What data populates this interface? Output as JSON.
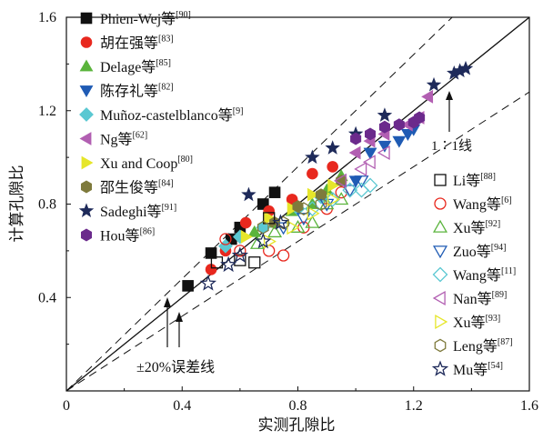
{
  "chart_data": {
    "type": "scatter",
    "xlabel": "实测孔隙比",
    "ylabel": "计算孔隙比",
    "xlim": [
      0,
      1.6
    ],
    "ylim": [
      0,
      1.6
    ],
    "xticks": [
      "0",
      "0.4",
      "0.8",
      "1.2",
      "1.6"
    ],
    "yticks": [
      "0.4",
      "0.8",
      "1.2",
      "1.6"
    ],
    "reference_lines": [
      {
        "label": "1∶1线",
        "slope": 1.0
      },
      {
        "label": "±20%误差线",
        "slopes": [
          1.2,
          0.8
        ]
      }
    ],
    "legend_left": [
      {
        "name": "Phien-Wej等",
        "ref": "[90]",
        "marker": "square",
        "color": "#111111",
        "filled": true
      },
      {
        "name": "胡在强等",
        "ref": "[83]",
        "marker": "circle",
        "color": "#e8281e",
        "filled": true
      },
      {
        "name": "Delage等",
        "ref": "[85]",
        "marker": "triangle-up",
        "color": "#5ab43c",
        "filled": true
      },
      {
        "name": "陈存礼等",
        "ref": "[82]",
        "marker": "triangle-down",
        "color": "#1f5bb4",
        "filled": true
      },
      {
        "name": "Muñoz-castelblanco等",
        "ref": "[9]",
        "marker": "diamond",
        "color": "#5bc8d2",
        "filled": true
      },
      {
        "name": "Ng等",
        "ref": "[62]",
        "marker": "triangle-left",
        "color": "#b25fb2",
        "filled": true
      },
      {
        "name": "Xu and Coop",
        "ref": "[80]",
        "marker": "triangle-right",
        "color": "#e6e62a",
        "filled": true
      },
      {
        "name": "邵生俊等",
        "ref": "[84]",
        "marker": "hexagon",
        "color": "#7e7a3c",
        "filled": true
      },
      {
        "name": "Sadeghi等",
        "ref": "[91]",
        "marker": "star",
        "color": "#1e2a5a",
        "filled": true
      },
      {
        "name": "Hou等",
        "ref": "[86]",
        "marker": "hexagon",
        "color": "#6b2a8c",
        "filled": true
      }
    ],
    "legend_right": [
      {
        "name": "Li等",
        "ref": "[88]",
        "marker": "square",
        "color": "#111111",
        "filled": false
      },
      {
        "name": "Wang等",
        "ref": "[6]",
        "marker": "circle",
        "color": "#e8281e",
        "filled": false
      },
      {
        "name": "Xu等",
        "ref": "[92]",
        "marker": "triangle-up",
        "color": "#5ab43c",
        "filled": false
      },
      {
        "name": "Zuo等",
        "ref": "[94]",
        "marker": "triangle-down",
        "color": "#1f5bb4",
        "filled": false
      },
      {
        "name": "Wang等",
        "ref": "[11]",
        "marker": "diamond",
        "color": "#5bc8d2",
        "filled": false
      },
      {
        "name": "Nan等",
        "ref": "[89]",
        "marker": "triangle-left",
        "color": "#b25fb2",
        "filled": false
      },
      {
        "name": "Xu等",
        "ref": "[93]",
        "marker": "triangle-right",
        "color": "#e6e62a",
        "filled": false
      },
      {
        "name": "Leng等",
        "ref": "[87]",
        "marker": "hexagon",
        "color": "#7e7a3c",
        "filled": false
      },
      {
        "name": "Mu等",
        "ref": "[54]",
        "marker": "star",
        "color": "#1e2a5a",
        "filled": false
      }
    ],
    "series": [
      {
        "legend": "legend_left.0",
        "points": [
          [
            0.42,
            0.45
          ],
          [
            0.5,
            0.59
          ],
          [
            0.57,
            0.65
          ],
          [
            0.6,
            0.7
          ],
          [
            0.68,
            0.8
          ],
          [
            0.72,
            0.85
          ]
        ]
      },
      {
        "legend": "legend_left.1",
        "points": [
          [
            0.5,
            0.52
          ],
          [
            0.55,
            0.6
          ],
          [
            0.62,
            0.72
          ],
          [
            0.7,
            0.77
          ],
          [
            0.78,
            0.82
          ],
          [
            0.85,
            0.93
          ],
          [
            0.92,
            0.96
          ]
        ]
      },
      {
        "legend": "legend_left.2",
        "points": [
          [
            0.65,
            0.68
          ],
          [
            0.72,
            0.72
          ],
          [
            0.78,
            0.77
          ],
          [
            0.85,
            0.8
          ],
          [
            0.9,
            0.86
          ],
          [
            0.95,
            0.92
          ]
        ]
      },
      {
        "legend": "legend_left.3",
        "points": [
          [
            1.0,
            0.9
          ],
          [
            1.05,
            1.02
          ],
          [
            1.1,
            1.05
          ],
          [
            1.15,
            1.07
          ],
          [
            1.18,
            1.1
          ],
          [
            1.2,
            1.12
          ]
        ]
      },
      {
        "legend": "legend_left.4",
        "points": [
          [
            0.55,
            0.62
          ],
          [
            0.6,
            0.66
          ],
          [
            0.68,
            0.7
          ],
          [
            0.8,
            0.78
          ],
          [
            0.88,
            0.83
          ]
        ]
      },
      {
        "legend": "legend_left.5",
        "points": [
          [
            1.0,
            1.02
          ],
          [
            1.05,
            1.07
          ],
          [
            1.1,
            1.1
          ],
          [
            1.18,
            1.14
          ],
          [
            1.22,
            1.17
          ],
          [
            1.25,
            1.26
          ]
        ]
      },
      {
        "legend": "legend_left.6",
        "points": [
          [
            0.62,
            0.66
          ],
          [
            0.7,
            0.74
          ],
          [
            0.78,
            0.78
          ],
          [
            0.85,
            0.84
          ],
          [
            0.92,
            0.88
          ]
        ]
      },
      {
        "legend": "legend_left.7",
        "points": [
          [
            0.72,
            0.72
          ],
          [
            0.8,
            0.79
          ],
          [
            0.88,
            0.84
          ],
          [
            0.95,
            0.9
          ]
        ]
      },
      {
        "legend": "legend_left.8",
        "points": [
          [
            0.63,
            0.84
          ],
          [
            0.85,
            1.0
          ],
          [
            0.92,
            1.04
          ],
          [
            1.0,
            1.1
          ],
          [
            1.1,
            1.18
          ],
          [
            1.27,
            1.31
          ],
          [
            1.34,
            1.36
          ],
          [
            1.36,
            1.37
          ],
          [
            1.38,
            1.38
          ]
        ]
      },
      {
        "legend": "legend_left.9",
        "points": [
          [
            1.0,
            1.08
          ],
          [
            1.05,
            1.1
          ],
          [
            1.1,
            1.13
          ],
          [
            1.15,
            1.14
          ],
          [
            1.2,
            1.15
          ],
          [
            1.22,
            1.17
          ]
        ]
      },
      {
        "legend": "legend_right.0",
        "points": [
          [
            0.52,
            0.55
          ],
          [
            0.6,
            0.56
          ],
          [
            0.65,
            0.55
          ],
          [
            0.7,
            0.74
          ]
        ]
      },
      {
        "legend": "legend_right.1",
        "points": [
          [
            0.55,
            0.65
          ],
          [
            0.6,
            0.6
          ],
          [
            0.7,
            0.6
          ],
          [
            0.75,
            0.58
          ],
          [
            0.82,
            0.7
          ],
          [
            0.9,
            0.78
          ],
          [
            0.95,
            0.85
          ]
        ]
      },
      {
        "legend": "legend_right.2",
        "points": [
          [
            0.66,
            0.63
          ],
          [
            0.72,
            0.68
          ],
          [
            0.8,
            0.7
          ],
          [
            0.85,
            0.72
          ],
          [
            0.9,
            0.8
          ],
          [
            0.95,
            0.82
          ]
        ]
      },
      {
        "legend": "legend_right.3",
        "points": [
          [
            0.75,
            0.7
          ],
          [
            0.82,
            0.74
          ],
          [
            0.9,
            0.8
          ],
          [
            0.98,
            0.86
          ],
          [
            1.02,
            0.9
          ]
        ]
      },
      {
        "legend": "legend_right.4",
        "points": [
          [
            0.85,
            0.78
          ],
          [
            0.92,
            0.82
          ],
          [
            0.98,
            0.86
          ],
          [
            1.02,
            0.86
          ],
          [
            1.05,
            0.88
          ]
        ]
      },
      {
        "legend": "legend_right.5",
        "points": [
          [
            0.95,
            0.9
          ],
          [
            1.02,
            0.95
          ],
          [
            1.05,
            0.98
          ],
          [
            1.1,
            1.02
          ]
        ]
      },
      {
        "legend": "legend_right.6",
        "points": [
          [
            0.7,
            0.64
          ],
          [
            0.78,
            0.7
          ],
          [
            0.85,
            0.76
          ],
          [
            0.92,
            0.82
          ]
        ]
      },
      {
        "legend": "legend_right.7",
        "points": [
          [
            0.68,
            0.7
          ],
          [
            0.75,
            0.72
          ],
          [
            0.82,
            0.78
          ],
          [
            0.88,
            0.8
          ]
        ]
      },
      {
        "legend": "legend_right.8",
        "points": [
          [
            0.49,
            0.46
          ],
          [
            0.56,
            0.54
          ],
          [
            0.6,
            0.58
          ],
          [
            0.68,
            0.64
          ],
          [
            0.74,
            0.72
          ]
        ]
      }
    ]
  }
}
